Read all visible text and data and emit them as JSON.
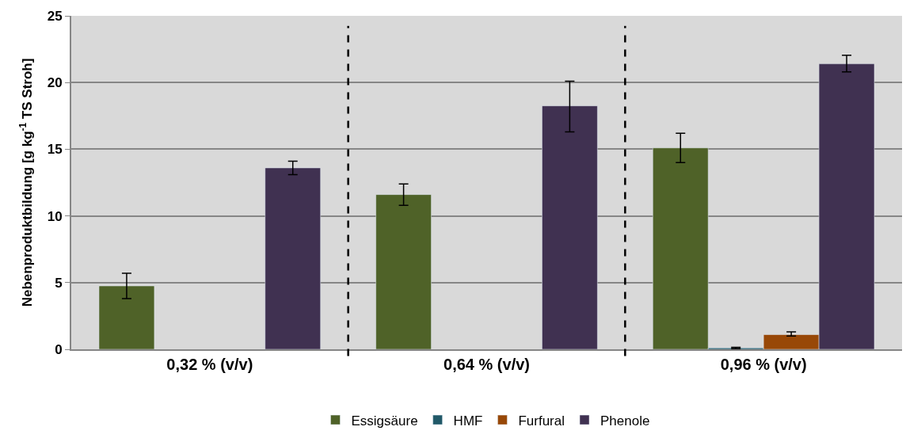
{
  "chart_data": {
    "type": "bar",
    "ylabel": "Nebenproduktbildung [g kg$^{-1}$ TS Stroh]",
    "categories": [
      "0,32 % (v/v)",
      "0,64 % (v/v)",
      "0,96 % (v/v)"
    ],
    "series": [
      {
        "name": "Essigsäure",
        "color": "#4f6228",
        "values": [
          4.75,
          11.6,
          15.1
        ],
        "errors": [
          [
            3.8,
            5.7
          ],
          [
            10.8,
            12.4
          ],
          [
            14.0,
            16.2
          ]
        ]
      },
      {
        "name": "HMF",
        "color": "#215968",
        "values": [
          null,
          null,
          0.1
        ],
        "errors": [
          null,
          null,
          [
            0.05,
            0.15
          ]
        ]
      },
      {
        "name": "Furfural",
        "color": "#984807",
        "values": [
          null,
          null,
          1.1
        ],
        "errors": [
          null,
          null,
          [
            1.0,
            1.3
          ]
        ]
      },
      {
        "name": "Phenole",
        "color": "#403151",
        "values": [
          13.6,
          18.25,
          21.4
        ],
        "errors": [
          [
            13.1,
            14.1
          ],
          [
            16.3,
            20.1
          ],
          [
            20.8,
            22.05
          ]
        ]
      }
    ],
    "ylim": [
      0,
      25
    ],
    "yticks": [
      0,
      5,
      10,
      15,
      20,
      25
    ],
    "grid": "y",
    "legend": "bottom"
  }
}
